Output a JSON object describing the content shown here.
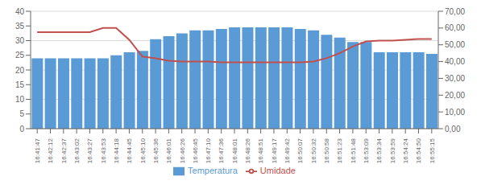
{
  "chart_data": {
    "type": "bar",
    "categories": [
      "16:41:47",
      "16:42:12",
      "16:42:37",
      "16:43:02",
      "16:43:27",
      "16:43:53",
      "16:44:18",
      "16:44:45",
      "16:45:10",
      "16:45:36",
      "16:46:01",
      "16:46:26",
      "16:46:45",
      "16:47:10",
      "16:47:36",
      "16:48:01",
      "16:48:26",
      "16:48:51",
      "16:49:17",
      "16:49:42",
      "16:50:07",
      "16:50:32",
      "16:50:58",
      "16:51:23",
      "16:51:48",
      "16:53:09",
      "16:53:34",
      "16:53:59",
      "16:54:24",
      "16:54:50",
      "16:55:15"
    ],
    "series": [
      {
        "name": "Temperatura",
        "type": "bar",
        "color": "#5B9BD5",
        "values": [
          24.0,
          24.0,
          24.0,
          24.0,
          24.0,
          24.0,
          25.0,
          26.0,
          26.5,
          30.5,
          31.5,
          32.5,
          33.5,
          33.5,
          34.0,
          34.5,
          34.5,
          34.5,
          34.5,
          34.5,
          34.0,
          33.5,
          32.0,
          31.0,
          29.5,
          29.5,
          26.0,
          26.0,
          26.0,
          26.0,
          25.5
        ]
      },
      {
        "name": "Umidade",
        "type": "line",
        "color": "#C0504D",
        "axis": "y2",
        "values": [
          57.5,
          57.5,
          57.5,
          57.5,
          57.5,
          60.0,
          60.0,
          53.0,
          43.0,
          42.0,
          40.5,
          40.0,
          40.0,
          40.0,
          39.5,
          39.5,
          39.5,
          39.5,
          39.5,
          39.5,
          39.5,
          40.0,
          42.0,
          45.0,
          49.0,
          52.0,
          52.5,
          52.5,
          53.0,
          53.5,
          53.5
        ]
      }
    ],
    "ylim": [
      0,
      40
    ],
    "yticks": [
      0,
      5,
      10,
      15,
      20,
      25,
      30,
      35,
      40
    ],
    "y2lim": [
      0,
      70
    ],
    "y2ticks": [
      {
        "value": 0,
        "label": "0,00"
      },
      {
        "value": 10,
        "label": "10,00"
      },
      {
        "value": 20,
        "label": "20,00"
      },
      {
        "value": 30,
        "label": "30,00"
      },
      {
        "value": 40,
        "label": "40,00"
      },
      {
        "value": 50,
        "label": "50,00"
      },
      {
        "value": 60,
        "label": "60,00"
      },
      {
        "value": 70,
        "label": "70,00"
      }
    ],
    "grid": true,
    "legend": "bottom"
  }
}
